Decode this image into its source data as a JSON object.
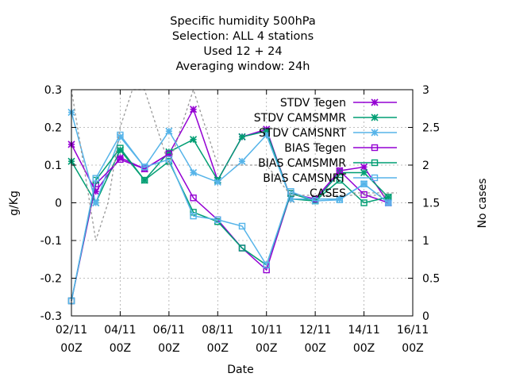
{
  "chart_data": {
    "type": "line",
    "title_lines": [
      "Specific humidity 500hPa",
      "Selection: ALL      4 stations",
      "Used  12 + 24",
      "Averaging window: 24h"
    ],
    "xlabel": "Date",
    "ylabel": "g/Kg",
    "y2label": "No cases",
    "xlim": [
      0,
      14
    ],
    "ylim": [
      -0.3,
      0.3
    ],
    "y2lim": [
      0,
      3
    ],
    "x_ticks": [
      {
        "x": 0,
        "line1": "02/11",
        "line2": "00Z"
      },
      {
        "x": 2,
        "line1": "04/11",
        "line2": "00Z"
      },
      {
        "x": 4,
        "line1": "06/11",
        "line2": "00Z"
      },
      {
        "x": 6,
        "line1": "08/11",
        "line2": "00Z"
      },
      {
        "x": 8,
        "line1": "10/11",
        "line2": "00Z"
      },
      {
        "x": 10,
        "line1": "12/11",
        "line2": "00Z"
      },
      {
        "x": 12,
        "line1": "14/11",
        "line2": "00Z"
      },
      {
        "x": 14,
        "line1": "16/11",
        "line2": "00Z"
      }
    ],
    "y_ticks": [
      {
        "v": 0.3,
        "label": "0.3"
      },
      {
        "v": 0.2,
        "label": "0.2"
      },
      {
        "v": 0.1,
        "label": "0.1"
      },
      {
        "v": 0,
        "label": "0"
      },
      {
        "v": -0.1,
        "label": "-0.1"
      },
      {
        "v": -0.2,
        "label": "-0.2"
      },
      {
        "v": -0.3,
        "label": "-0.3"
      }
    ],
    "y2_ticks": [
      {
        "v": 3,
        "label": "3"
      },
      {
        "v": 2.5,
        "label": "2.5"
      },
      {
        "v": 2,
        "label": "2"
      },
      {
        "v": 1.5,
        "label": "1.5"
      },
      {
        "v": 1,
        "label": "1"
      },
      {
        "v": 0.5,
        "label": "0.5"
      },
      {
        "v": 0,
        "label": "0"
      }
    ],
    "grid": true,
    "legend_position": "top-right",
    "series": [
      {
        "name": "STDV Tegen",
        "color": "#9400d3",
        "marker": "star",
        "x": [
          0,
          1,
          2,
          3,
          4,
          5,
          6,
          7,
          8,
          9,
          10,
          11,
          12,
          13
        ],
        "y": [
          0.155,
          0.03,
          0.12,
          0.09,
          0.13,
          0.248,
          0.06,
          0.175,
          0.195,
          0.01,
          0.01,
          0.085,
          0.095,
          0.0
        ]
      },
      {
        "name": "STDV CAMSMMR",
        "color": "#009e73",
        "marker": "star",
        "x": [
          0,
          1,
          2,
          3,
          4,
          5,
          6,
          7,
          8,
          9,
          10,
          11,
          12,
          13
        ],
        "y": [
          0.11,
          0.0,
          0.14,
          0.06,
          0.135,
          0.168,
          0.06,
          0.175,
          0.19,
          0.01,
          0.005,
          0.08,
          0.08,
          0.015
        ]
      },
      {
        "name": "STDV CAMSNRT",
        "color": "#56b4e9",
        "marker": "star",
        "x": [
          0,
          1,
          2,
          3,
          4,
          5,
          6,
          7,
          8,
          9,
          10,
          11,
          12,
          13
        ],
        "y": [
          0.24,
          0.0,
          0.175,
          0.095,
          0.19,
          0.08,
          0.055,
          0.11,
          0.18,
          0.01,
          0.01,
          0.01,
          0.05,
          0.0
        ]
      },
      {
        "name": "BIAS Tegen",
        "color": "#9400d3",
        "marker": "square",
        "x": [
          0,
          1,
          2,
          3,
          4,
          5,
          6,
          7,
          8,
          9,
          10,
          11,
          12,
          13
        ],
        "y": [
          -0.26,
          0.05,
          0.115,
          0.09,
          0.13,
          0.013,
          -0.045,
          -0.12,
          -0.178,
          0.025,
          0.01,
          0.085,
          0.022,
          0.0
        ]
      },
      {
        "name": "BIAS CAMSMMR",
        "color": "#009e73",
        "marker": "square",
        "x": [
          0,
          1,
          2,
          3,
          4,
          5,
          6,
          7,
          8,
          9,
          10,
          11,
          12,
          13
        ],
        "y": [
          -0.26,
          0.06,
          0.145,
          0.06,
          0.11,
          -0.025,
          -0.05,
          -0.12,
          -0.165,
          0.025,
          0.005,
          0.06,
          0.0,
          0.015
        ]
      },
      {
        "name": "BIAS CAMSNRT",
        "color": "#56b4e9",
        "marker": "square",
        "x": [
          0,
          1,
          2,
          3,
          4,
          5,
          6,
          7,
          8,
          9,
          10,
          11,
          12,
          13
        ],
        "y": [
          -0.26,
          0.065,
          0.18,
          0.095,
          0.115,
          -0.035,
          -0.045,
          -0.062,
          -0.165,
          0.03,
          0.005,
          0.008,
          0.05,
          0.0
        ]
      },
      {
        "name": "CASES",
        "color": "#999999",
        "marker": "none",
        "axis": "y2",
        "dashed": true,
        "x": [
          0,
          0.5,
          1,
          1.5,
          2,
          2.5,
          3,
          3.5,
          4,
          4.5,
          5,
          5.5,
          6,
          6.5,
          7,
          7.5,
          8,
          8.5,
          9,
          9.5,
          10,
          10.5,
          11,
          11.5,
          12,
          12.5,
          13
        ],
        "y": [
          3,
          2,
          1,
          1.5,
          2.5,
          3,
          3,
          2.5,
          2,
          2.5,
          3,
          2.5,
          2,
          2,
          2,
          2,
          2,
          1.8,
          1.6,
          1.6,
          1.6,
          1.6,
          1.6,
          1.6,
          1.6,
          1.6,
          1.6
        ]
      }
    ]
  }
}
